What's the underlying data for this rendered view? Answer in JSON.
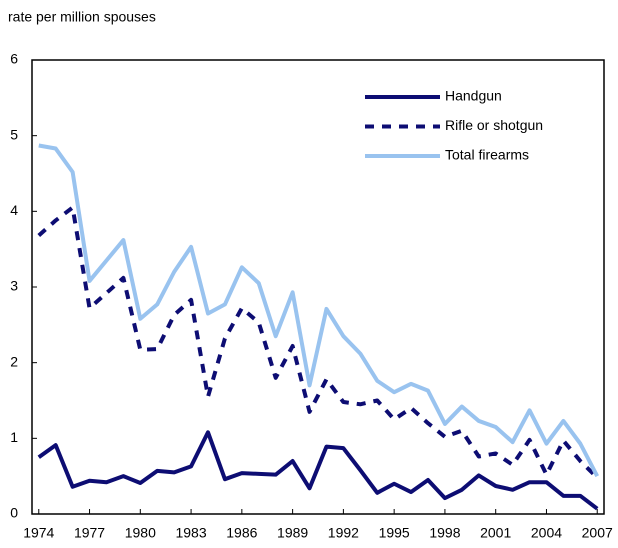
{
  "chart_data": {
    "type": "line",
    "y_axis_label": "rate per million spouses",
    "x": [
      1974,
      1975,
      1976,
      1977,
      1978,
      1979,
      1980,
      1981,
      1982,
      1983,
      1984,
      1985,
      1986,
      1987,
      1988,
      1989,
      1990,
      1991,
      1992,
      1993,
      1994,
      1995,
      1996,
      1997,
      1998,
      1999,
      2000,
      2001,
      2002,
      2003,
      2004,
      2005,
      2006,
      2007
    ],
    "series": [
      {
        "name": "Handgun",
        "color": "#0d0d73",
        "style": "solid",
        "values": [
          0.75,
          0.91,
          0.36,
          0.44,
          0.42,
          0.5,
          0.41,
          0.57,
          0.55,
          0.63,
          1.08,
          0.46,
          0.54,
          0.53,
          0.52,
          0.7,
          0.34,
          0.89,
          0.87,
          0.58,
          0.28,
          0.4,
          0.29,
          0.45,
          0.21,
          0.32,
          0.51,
          0.37,
          0.32,
          0.42,
          0.42,
          0.24,
          0.24,
          0.07
        ]
      },
      {
        "name": "Rifle or shotgun",
        "color": "#0d0d73",
        "style": "dashed",
        "values": [
          3.68,
          3.88,
          4.05,
          2.72,
          2.92,
          3.12,
          2.17,
          2.18,
          2.63,
          2.83,
          1.55,
          2.32,
          2.72,
          2.53,
          1.8,
          2.22,
          1.35,
          1.78,
          1.48,
          1.45,
          1.5,
          1.25,
          1.4,
          1.2,
          1.02,
          1.1,
          0.76,
          0.8,
          0.65,
          0.98,
          0.52,
          0.97,
          0.7,
          0.48
        ]
      },
      {
        "name": "Total firearms",
        "color": "#99c3ef",
        "style": "solid",
        "values": [
          4.87,
          4.83,
          4.52,
          3.08,
          3.35,
          3.62,
          2.58,
          2.77,
          3.2,
          3.53,
          2.65,
          2.77,
          3.26,
          3.05,
          2.35,
          2.93,
          1.7,
          2.71,
          2.35,
          2.12,
          1.76,
          1.61,
          1.72,
          1.63,
          1.19,
          1.42,
          1.23,
          1.15,
          0.95,
          1.37,
          0.93,
          1.23,
          0.93,
          0.5
        ]
      }
    ],
    "xlim": [
      1973.6,
      2007.4
    ],
    "xticks": [
      1974,
      1977,
      1980,
      1983,
      1986,
      1989,
      1992,
      1995,
      1998,
      2001,
      2004,
      2007
    ],
    "ylim": [
      0,
      6
    ],
    "yticks": [
      0,
      1,
      2,
      3,
      4,
      5,
      6
    ],
    "legend": "upper right",
    "grid": false
  }
}
